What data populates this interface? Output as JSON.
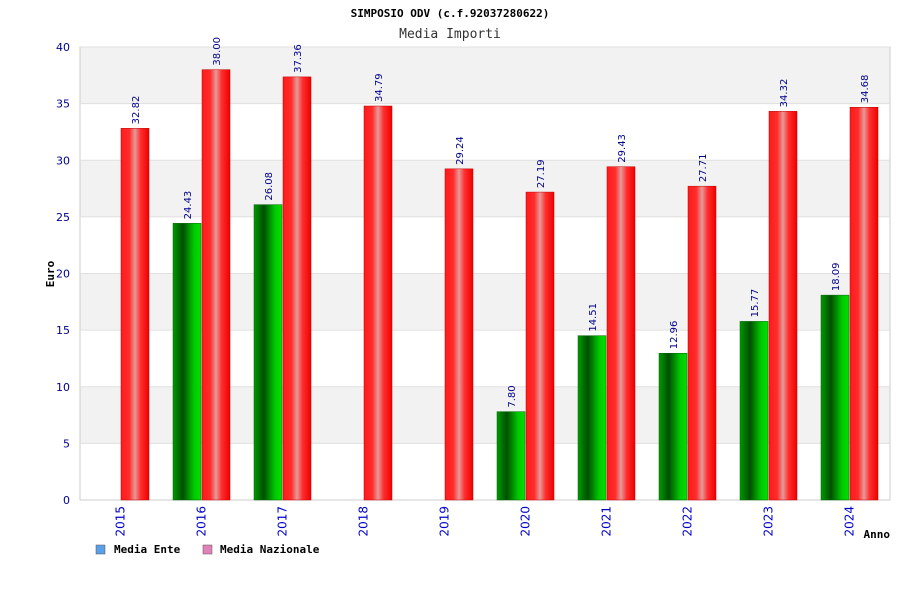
{
  "chart_data": {
    "type": "bar",
    "title": "SIMPOSIO ODV (c.f.92037280622)",
    "subtitle": "Media Importi",
    "xlabel": "Anno",
    "ylabel": "Euro",
    "ylim": [
      0,
      40
    ],
    "yticks": [
      0,
      5,
      10,
      15,
      20,
      25,
      30,
      35,
      40
    ],
    "grid": true,
    "legend_position": "bottom-left",
    "categories": [
      "2015",
      "2016",
      "2017",
      "2018",
      "2019",
      "2020",
      "2021",
      "2022",
      "2023",
      "2024"
    ],
    "series": [
      {
        "name": "Media Ente",
        "color": "#00b000",
        "legend_color": "#5aa0e8",
        "values": [
          null,
          24.43,
          26.08,
          null,
          null,
          7.8,
          14.51,
          12.96,
          15.77,
          18.09
        ],
        "labels": [
          "",
          "24.43",
          "26.08",
          "",
          "",
          "7.80",
          "14.51",
          "12.96",
          "15.77",
          "18.09"
        ]
      },
      {
        "name": "Media Nazionale",
        "color": "#ff0000",
        "legend_color": "#e082b8",
        "values": [
          32.82,
          38.0,
          37.36,
          34.79,
          29.24,
          27.19,
          29.43,
          27.71,
          34.32,
          34.68
        ],
        "labels": [
          "32.82",
          "38.00",
          "37.36",
          "34.79",
          "29.24",
          "27.19",
          "29.43",
          "27.71",
          "34.32",
          "34.68"
        ]
      }
    ]
  }
}
